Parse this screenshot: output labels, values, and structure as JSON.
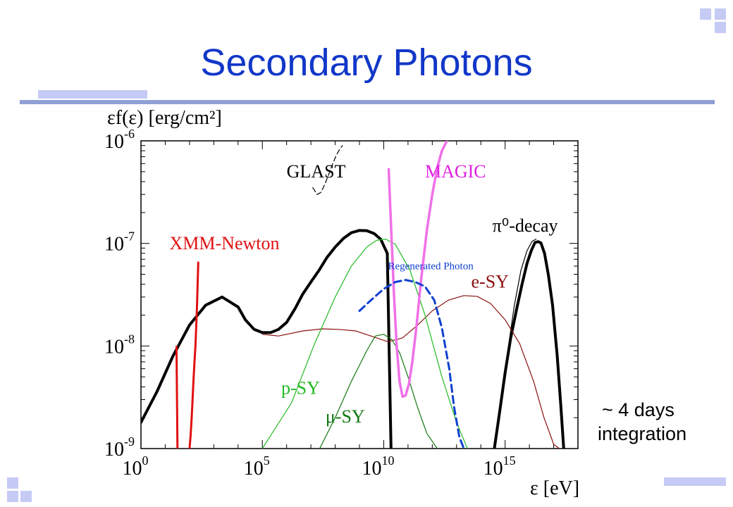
{
  "slide": {
    "title": "Secondary Photons",
    "note_line1": "~ 4 days",
    "note_line2": "integration",
    "accent_color": "#1137c8"
  },
  "chart_data": {
    "type": "line",
    "xlabel": "ε [eV]",
    "ylabel": "εf(ε) [erg/cm²]",
    "x_scale": "log",
    "y_scale": "log",
    "xlim": [
      1,
      1e+18
    ],
    "ylim": [
      1e-09,
      1e-06
    ],
    "x_ticks": [
      {
        "label": "10",
        "exp": "0",
        "value": 1
      },
      {
        "label": "10",
        "exp": "5",
        "value": 100000.0
      },
      {
        "label": "10",
        "exp": "10",
        "value": 10000000000.0
      },
      {
        "label": "10",
        "exp": "15",
        "value": 1000000000000000.0
      }
    ],
    "y_ticks": [
      {
        "label": "10",
        "exp": "-6",
        "value": 1e-06
      },
      {
        "label": "10",
        "exp": "-7",
        "value": 1e-07
      },
      {
        "label": "10",
        "exp": "-8",
        "value": 1e-08
      },
      {
        "label": "10",
        "exp": "-9",
        "value": 1e-09
      }
    ],
    "labels": [
      {
        "text": "GLAST",
        "color": "#000000",
        "x": 1000000.0,
        "y": 4.4e-07
      },
      {
        "text": "MAGIC",
        "color": "#e020e0",
        "x": 500000000000.0,
        "y": 4.4e-07
      },
      {
        "text": "XMM-Newton",
        "color": "#e01010",
        "x": 15,
        "y": 8.8e-08
      },
      {
        "text": "π⁰-decay",
        "color": "#000000",
        "x": 300000000000000.0,
        "y": 1.3e-07
      },
      {
        "text": "Regenerated Photon",
        "color": "#1040d0",
        "x": 15000000000.0,
        "y": 5.6e-08
      },
      {
        "text": "e-SY",
        "color": "#8b1010",
        "x": 40000000000000.0,
        "y": 3.7e-08
      },
      {
        "text": "p-SY",
        "color": "#22bb22",
        "x": 600000.0,
        "y": 3.4e-09
      },
      {
        "text": "μ-SY",
        "color": "#117711",
        "x": 40000000.0,
        "y": 1.8e-09
      }
    ],
    "series": [
      {
        "name": "total",
        "color": "#000000",
        "width": 4,
        "dash": "",
        "x": [
          1,
          4.6,
          21,
          100,
          464,
          2200,
          10000.0,
          20000.0,
          46000.0,
          100000.0,
          220000.0,
          460000.0,
          1000000.0,
          2200000.0,
          4600000.0,
          10000000.0,
          22000000.0,
          46000000.0,
          100000000.0,
          220000000.0,
          460000000.0,
          1000000000.0,
          2000000000.0,
          4000000000.0,
          7500000000.0,
          14000000000.0,
          20000000000.0
        ],
        "y": [
          1.8e-09,
          3.6e-09,
          8e-09,
          1.6e-08,
          2.5e-08,
          3e-08,
          2.4e-08,
          1.8e-08,
          1.45e-08,
          1.35e-08,
          1.35e-08,
          1.45e-08,
          1.7e-08,
          2.3e-08,
          3.2e-08,
          4.2e-08,
          5.5e-08,
          7.3e-08,
          9.2e-08,
          1.12e-07,
          1.27e-07,
          1.34e-07,
          1.33e-07,
          1.25e-07,
          1.1e-07,
          8e-08,
          1e-09
        ]
      },
      {
        "name": "pion",
        "color": "#000000",
        "width": 4,
        "dash": "",
        "x": [
          360000000000000.0,
          600000000000000.0,
          1000000000000000.0,
          1700000000000000.0,
          3000000000000000.0,
          5000000000000000.0,
          8000000000000000.0,
          1.2e+16,
          1.7e+16,
          2.3e+16,
          3e+16,
          4.2e+16,
          6e+16,
          9e+16,
          1.4e+17,
          2e+17,
          2.6e+17
        ],
        "y": [
          1e-09,
          2.3e-09,
          5.5e-09,
          1.2e-08,
          2.3e-08,
          4e-08,
          6.4e-08,
          8.5e-08,
          1.02e-07,
          1.04e-07,
          1.01e-07,
          8e-08,
          5e-08,
          2.5e-08,
          8e-09,
          2.5e-09,
          1e-09
        ]
      },
      {
        "name": "pion-thin",
        "color": "#000000",
        "width": 1.2,
        "dash": "",
        "x": [
          1200000000000000.0,
          2400000000000000.0,
          4500000000000000.0,
          8000000000000000.0,
          1.3e+16,
          1.9e+16
        ],
        "y": [
          8e-09,
          2.5e-08,
          5.5e-08,
          8.5e-08,
          1.05e-07,
          1.1e-07
        ]
      },
      {
        "name": "e-SY",
        "color": "#8b1010",
        "width": 1.2,
        "dash": "",
        "x": [
          100000.0,
          460000.0,
          4600000.0,
          30000000.0,
          150000000.0,
          700000000.0,
          3000000000.0,
          15000000000.0,
          60000000000.0,
          250000000000.0,
          1000000000000.0,
          4600000000000.0,
          20000000000000.0,
          70000000000000.0,
          250000000000000.0,
          1000000000000000.0,
          4000000000000000.0,
          1.5e+16,
          4e+16,
          1e+17,
          1.7e+17
        ],
        "y": [
          1.3e-08,
          1.25e-08,
          1.4e-08,
          1.47e-08,
          1.45e-08,
          1.4e-08,
          1.25e-08,
          1.1e-08,
          1.2e-08,
          1.6e-08,
          2.2e-08,
          2.8e-08,
          3.1e-08,
          3.05e-08,
          2.6e-08,
          1.8e-08,
          1.05e-08,
          4.5e-09,
          2e-09,
          1.1e-09,
          1e-09
        ]
      },
      {
        "name": "p-SY",
        "color": "#22bb22",
        "width": 1.2,
        "dash": "",
        "x": [
          100000.0,
          1600000.0,
          13000000.0,
          100000000.0,
          460000000.0,
          2000000000.0,
          5000000000.0,
          12000000000.0,
          30000000000.0,
          120000000000.0,
          500000000000.0,
          2500000000000.0,
          10000000000000.0,
          28000000000000.0
        ],
        "y": [
          1e-09,
          2.8e-09,
          1e-08,
          3e-08,
          6e-08,
          9.2e-08,
          1.07e-07,
          1.1e-07,
          9.8e-08,
          5.5e-08,
          2e-08,
          5e-09,
          1.8e-09,
          1e-09
        ]
      },
      {
        "name": "mu-SY",
        "color": "#117711",
        "width": 1.2,
        "dash": "",
        "x": [
          23000000.0,
          100000000.0,
          460000000.0,
          2000000000.0,
          4500000000.0,
          10000000000.0,
          22000000000.0,
          46000000000.0,
          100000000000.0,
          250000000000.0,
          600000000000.0,
          1600000000000.0
        ],
        "y": [
          1e-09,
          2e-09,
          4.5e-09,
          9e-09,
          1.25e-08,
          1.3e-08,
          1.15e-08,
          8.5e-09,
          5e-09,
          2.5e-09,
          1.4e-09,
          1e-09
        ]
      },
      {
        "name": "XMM-Newton",
        "color": "#e01010",
        "width": 3,
        "dash": "",
        "x": [
          100,
          110,
          120,
          130,
          140,
          155,
          175,
          200,
          230
        ],
        "y": [
          1e-09,
          1.3e-09,
          1.8e-09,
          2.6e-09,
          3.8e-09,
          6e-09,
          1e-08,
          2.2e-08,
          6.5e-08
        ]
      },
      {
        "name": "XMM-Newton-low",
        "color": "#e01010",
        "width": 3,
        "dash": "",
        "x": [
          29,
          30,
          31,
          32
        ],
        "y": [
          9.8e-09,
          4.5e-09,
          2e-09,
          1e-09
        ]
      },
      {
        "name": "MAGIC",
        "color": "#f070e8",
        "width": 3.5,
        "dash": "",
        "x": [
          16000000000.0,
          20000000000.0,
          26000000000.0,
          34000000000.0,
          45000000000.0,
          60000000000.0,
          80000000000.0,
          110000000000.0,
          150000000000.0,
          220000000000.0,
          350000000000.0,
          600000000000.0,
          1000000000000.0,
          1600000000000.0,
          2500000000000.0,
          4000000000000.0
        ],
        "y": [
          5.3e-07,
          1.5e-07,
          3.5e-08,
          1e-08,
          4.5e-09,
          3.2e-09,
          3.3e-09,
          4.3e-09,
          7e-09,
          1.5e-08,
          4.5e-08,
          1.35e-07,
          3e-07,
          5.5e-07,
          8e-07,
          1e-06
        ]
      },
      {
        "name": "GLAST",
        "color": "#000000",
        "width": 1.2,
        "dash": "7 4",
        "x": [
          12000000.0,
          18000000.0,
          26000000.0,
          38000000.0,
          56000000.0,
          80000000.0,
          110000000.0,
          150000000.0,
          200000000.0
        ],
        "y": [
          3.5e-07,
          3e-07,
          3.15e-07,
          3.8e-07,
          4.8e-07,
          6e-07,
          7.2e-07,
          8.2e-07,
          9e-07
        ]
      },
      {
        "name": "Regenerated Photon",
        "color": "#1040d0",
        "width": 3,
        "dash": "10 6",
        "x": [
          1000000000.0,
          3000000000.0,
          10000000000.0,
          30000000000.0,
          80000000000.0,
          200000000000.0,
          500000000000.0,
          1200000000000.0,
          2500000000000.0,
          5000000000000.0,
          8000000000000.0,
          13000000000000.0,
          20000000000000.0
        ],
        "y": [
          2.2e-08,
          2.8e-08,
          3.6e-08,
          4.2e-08,
          4.4e-08,
          4.2e-08,
          3.8e-08,
          2.8e-08,
          1.5e-08,
          6e-09,
          2.5e-09,
          1.3e-09,
          1e-09
        ]
      }
    ]
  }
}
